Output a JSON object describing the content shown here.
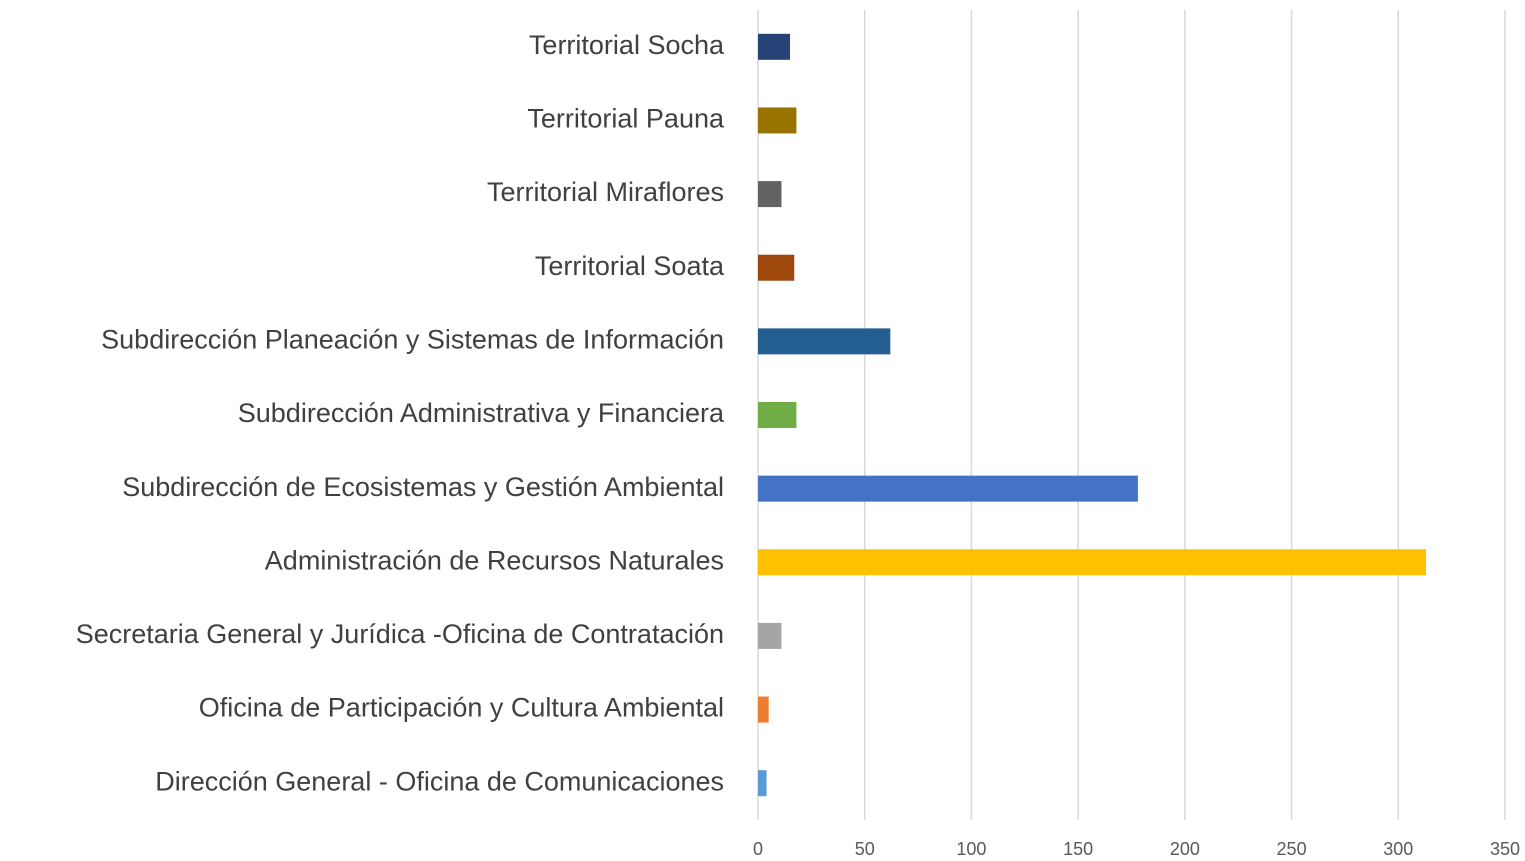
{
  "chart_data": {
    "type": "bar",
    "categories": [
      "Dirección General - Oficina de Comunicaciones",
      "Oficina de Participación y Cultura Ambiental",
      "Secretaria General y Jurídica -Oficina de Contratación",
      "Administración de Recursos Naturales",
      "Subdirección de Ecosistemas y Gestión Ambiental",
      "Subdirección Administrativa y Financiera",
      "Subdirección Planeación y Sistemas de Información",
      "Territorial Soata",
      "Territorial Miraflores",
      "Territorial Pauna",
      "Territorial Socha"
    ],
    "values": [
      4,
      5,
      11,
      313,
      178,
      18,
      62,
      17,
      11,
      18,
      15
    ],
    "colors": [
      "#5b9bd5",
      "#ed7d31",
      "#a5a5a5",
      "#ffc000",
      "#4472c4",
      "#70ad47",
      "#255e91",
      "#9e480e",
      "#636363",
      "#997300",
      "#264478"
    ],
    "xlim": [
      0,
      350
    ],
    "xticks": [
      0,
      50,
      100,
      150,
      200,
      250,
      300,
      350
    ],
    "grid": true
  }
}
